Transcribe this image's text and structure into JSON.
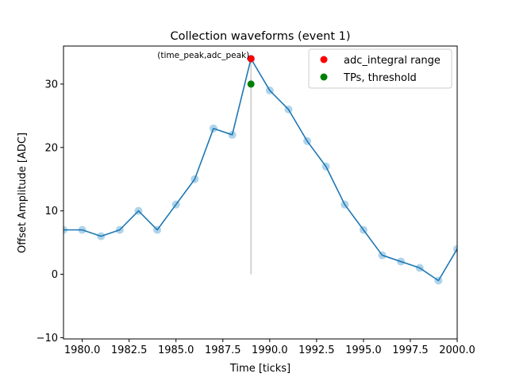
{
  "chart_data": {
    "type": "line",
    "title": "Collection waveforms (event 1)",
    "xlabel": "Time [ticks]",
    "ylabel": "Offset Amplitude [ADC]",
    "xlim": [
      1979,
      2000
    ],
    "ylim": [
      -10.2,
      36
    ],
    "x_ticks": [
      1980.0,
      1982.5,
      1985.0,
      1987.5,
      1990.0,
      1992.5,
      1995.0,
      1997.5,
      2000.0
    ],
    "x_tick_labels": [
      "1980.0",
      "1982.5",
      "1985.0",
      "1987.5",
      "1990.0",
      "1992.5",
      "1995.0",
      "1997.5",
      "2000.0"
    ],
    "y_ticks": [
      -10,
      0,
      10,
      20,
      30
    ],
    "y_tick_labels": [
      "−10",
      "0",
      "10",
      "20",
      "30"
    ],
    "grid": false,
    "legend_position": "top-right",
    "series": [
      {
        "x": [
          1979,
          1980,
          1981,
          1982,
          1983,
          1984,
          1985,
          1986,
          1987,
          1988,
          1989,
          1990,
          1991,
          1992,
          1993,
          1994,
          1995,
          1996,
          1997,
          1998,
          1999,
          2000
        ],
        "y": [
          7,
          7,
          6,
          7,
          10,
          7,
          11,
          15,
          23,
          22,
          34,
          29,
          26,
          21,
          17,
          11,
          7,
          3,
          2,
          1,
          -1,
          4
        ],
        "line_color": "#1f77b4",
        "marker_color": "#a6cfe8"
      }
    ],
    "vertical_line": {
      "x": 1989,
      "y_from": 0,
      "y_to": 34,
      "color": "#bbbbbb"
    },
    "markers": [
      {
        "label": "adc_integral range",
        "x": 1989,
        "y": 34,
        "color": "#ff0000"
      },
      {
        "label": "TPs, threshold",
        "x": 1989,
        "y": 30,
        "color": "#008000"
      }
    ],
    "annotation": {
      "text": "(time_peak,adc_peak)",
      "x": 1989,
      "y": 34
    }
  }
}
